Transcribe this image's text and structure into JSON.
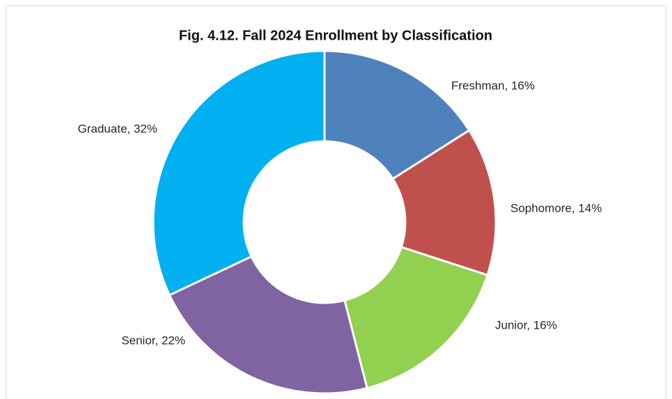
{
  "chart_data": {
    "type": "donut",
    "title": "Fig. 4.12. Fall 2024 Enrollment by Classification",
    "values": [
      16,
      14,
      16,
      22,
      32
    ],
    "value_labels": [
      "Freshman, 16%",
      "Sophomore, 14%",
      "Junior, 16%",
      "Senior, 22%",
      "Graduate, 32%"
    ],
    "colors": [
      "#4f81bd",
      "#c0504d",
      "#92d050",
      "#8064a2",
      "#00b0f0"
    ]
  }
}
